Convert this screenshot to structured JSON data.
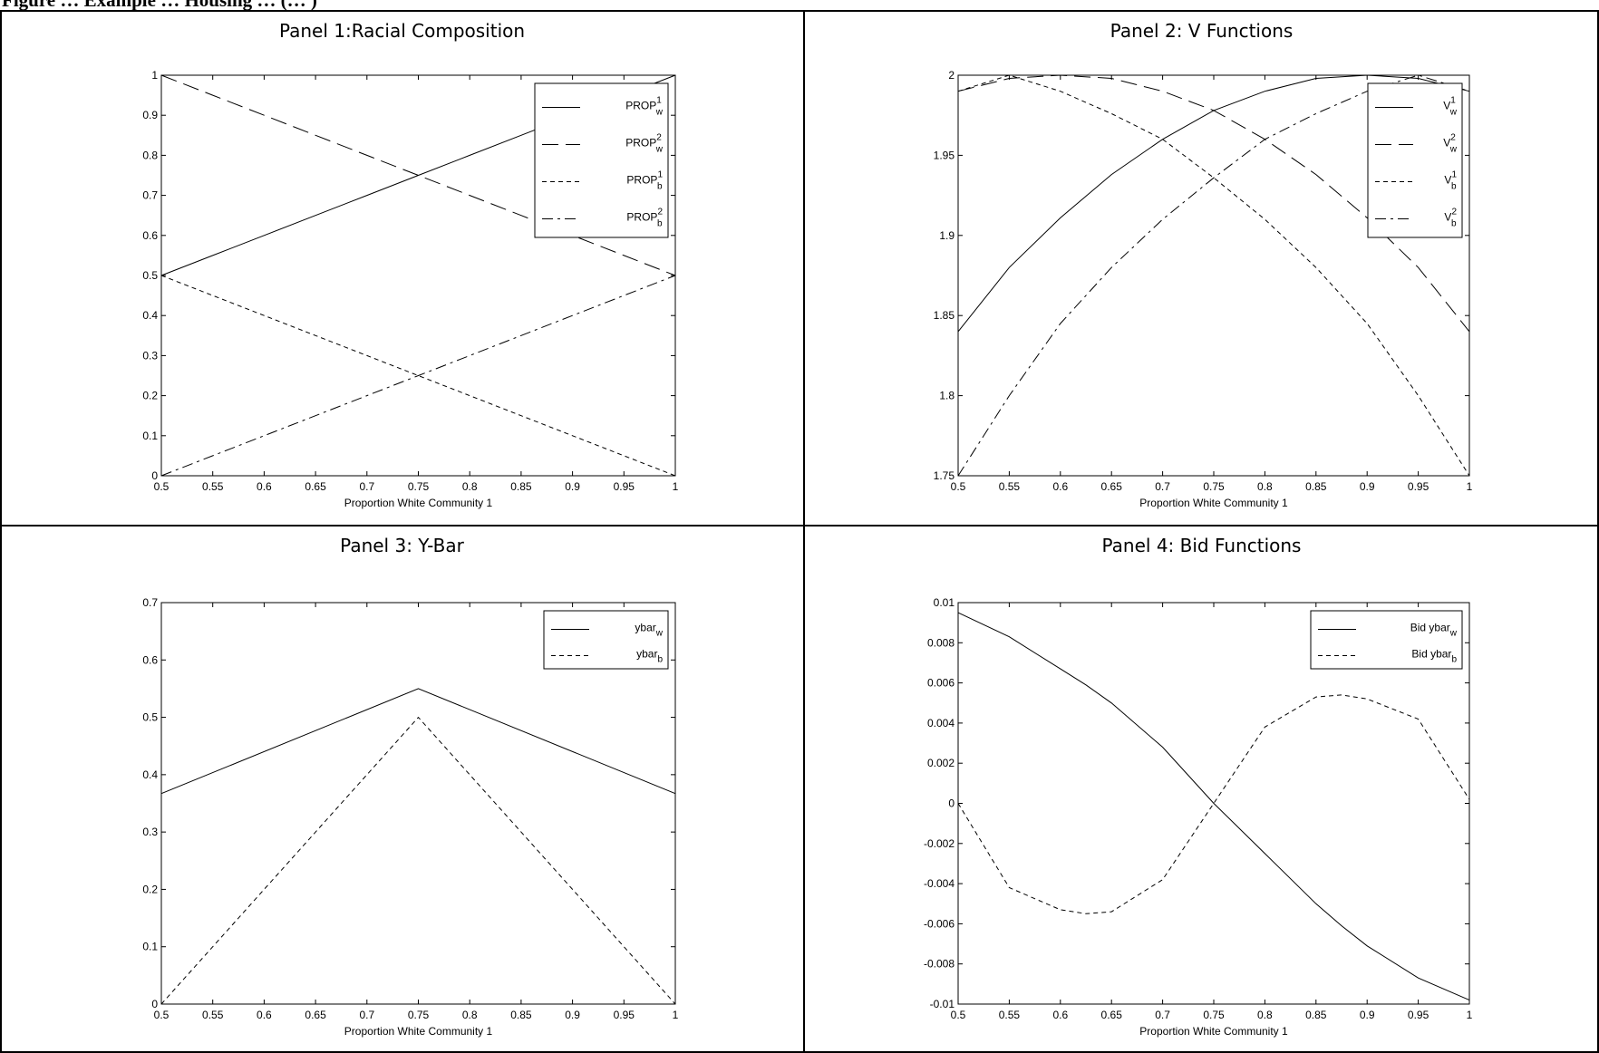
{
  "figure_caption_fragment": "Figure … Example … Housing … (… )",
  "chart_data": [
    {
      "type": "line",
      "title": "Panel 1:Racial Composition",
      "xlabel": "Proportion White Community 1",
      "ylabel": "",
      "xlim": [
        0.5,
        1
      ],
      "ylim": [
        0,
        1
      ],
      "xticks": [
        "0.5",
        "0.55",
        "0.6",
        "0.65",
        "0.7",
        "0.75",
        "0.8",
        "0.85",
        "0.9",
        "0.95",
        "1"
      ],
      "yticks": [
        "0",
        "0.1",
        "0.2",
        "0.3",
        "0.4",
        "0.5",
        "0.6",
        "0.7",
        "0.8",
        "0.9",
        "1"
      ],
      "legend_position": "top-right",
      "x": [
        0.5,
        0.55,
        0.6,
        0.65,
        0.7,
        0.75,
        0.8,
        0.85,
        0.9,
        0.95,
        1.0
      ],
      "series": [
        {
          "name": "PROP",
          "sub": "w",
          "sup": "1",
          "dash": "solid",
          "values": [
            0.5,
            0.55,
            0.6,
            0.65,
            0.7,
            0.75,
            0.8,
            0.85,
            0.9,
            0.95,
            1.0
          ]
        },
        {
          "name": "PROP",
          "sub": "w",
          "sup": "2",
          "dash": "longdash",
          "values": [
            1.0,
            0.95,
            0.9,
            0.85,
            0.8,
            0.75,
            0.7,
            0.65,
            0.6,
            0.55,
            0.5
          ]
        },
        {
          "name": "PROP",
          "sub": "b",
          "sup": "1",
          "dash": "dashed",
          "values": [
            0.5,
            0.45,
            0.4,
            0.35,
            0.3,
            0.25,
            0.2,
            0.15,
            0.1,
            0.05,
            0.0
          ]
        },
        {
          "name": "PROP",
          "sub": "b",
          "sup": "2",
          "dash": "dashdot",
          "values": [
            0.0,
            0.05,
            0.1,
            0.15,
            0.2,
            0.25,
            0.3,
            0.35,
            0.4,
            0.45,
            0.5
          ]
        }
      ]
    },
    {
      "type": "line",
      "title": "Panel 2: V Functions",
      "xlabel": "Proportion White Community 1",
      "ylabel": "",
      "xlim": [
        0.5,
        1
      ],
      "ylim": [
        1.75,
        2
      ],
      "xticks": [
        "0.5",
        "0.55",
        "0.6",
        "0.65",
        "0.7",
        "0.75",
        "0.8",
        "0.85",
        "0.9",
        "0.95",
        "1"
      ],
      "yticks": [
        "1.75",
        "1.8",
        "1.85",
        "1.9",
        "1.95",
        "2"
      ],
      "legend_position": "top-right",
      "x": [
        0.5,
        0.55,
        0.6,
        0.65,
        0.7,
        0.75,
        0.8,
        0.85,
        0.9,
        0.95,
        1.0
      ],
      "series": [
        {
          "name": "V",
          "sub": "w",
          "sup": "1",
          "dash": "solid",
          "values": [
            1.84,
            1.88,
            1.911,
            1.938,
            1.96,
            1.978,
            1.99,
            1.998,
            2.0,
            1.998,
            1.99
          ]
        },
        {
          "name": "V",
          "sub": "w",
          "sup": "2",
          "dash": "longdash",
          "values": [
            1.99,
            1.998,
            2.0,
            1.998,
            1.99,
            1.978,
            1.96,
            1.938,
            1.911,
            1.88,
            1.84
          ]
        },
        {
          "name": "V",
          "sub": "b",
          "sup": "1",
          "dash": "dashed",
          "values": [
            1.99,
            2.0,
            1.99,
            1.976,
            1.96,
            1.936,
            1.91,
            1.88,
            1.845,
            1.8,
            1.75
          ]
        },
        {
          "name": "V",
          "sub": "b",
          "sup": "2",
          "dash": "dashdot",
          "values": [
            1.75,
            1.8,
            1.845,
            1.88,
            1.91,
            1.936,
            1.96,
            1.976,
            1.99,
            2.0,
            1.99
          ]
        }
      ]
    },
    {
      "type": "line",
      "title": "Panel 3: Y-Bar",
      "xlabel": "Proportion White Community 1",
      "ylabel": "",
      "xlim": [
        0.5,
        1
      ],
      "ylim": [
        0,
        0.7
      ],
      "xticks": [
        "0.5",
        "0.55",
        "0.6",
        "0.65",
        "0.7",
        "0.75",
        "0.8",
        "0.85",
        "0.9",
        "0.95",
        "1"
      ],
      "yticks": [
        "0",
        "0.1",
        "0.2",
        "0.3",
        "0.4",
        "0.5",
        "0.6",
        "0.7"
      ],
      "legend_position": "top-right",
      "x": [
        0.5,
        0.75,
        1.0
      ],
      "series": [
        {
          "name": "ybar",
          "sub": "w",
          "sup": "",
          "dash": "solid",
          "values": [
            0.367,
            0.55,
            0.367
          ]
        },
        {
          "name": "ybar",
          "sub": "b",
          "sup": "",
          "dash": "dashed",
          "values": [
            0.0,
            0.5,
            0.0
          ]
        }
      ]
    },
    {
      "type": "line",
      "title": "Panel 4: Bid Functions",
      "xlabel": "Proportion White Community 1",
      "ylabel": "",
      "xlim": [
        0.5,
        1
      ],
      "ylim": [
        -0.01,
        0.01
      ],
      "xticks": [
        "0.5",
        "0.55",
        "0.6",
        "0.65",
        "0.7",
        "0.75",
        "0.8",
        "0.85",
        "0.9",
        "0.95",
        "1"
      ],
      "yticks": [
        "-0.01",
        "-0.008",
        "-0.006",
        "-0.004",
        "-0.002",
        "0",
        "0.002",
        "0.004",
        "0.006",
        "0.008",
        "0.01"
      ],
      "legend_position": "top-right",
      "x": [
        0.5,
        0.55,
        0.6,
        0.625,
        0.65,
        0.7,
        0.75,
        0.8,
        0.85,
        0.875,
        0.9,
        0.95,
        1.0
      ],
      "series": [
        {
          "name": "Bid ybar",
          "sub": "w",
          "sup": "",
          "dash": "solid",
          "values": [
            0.0095,
            0.0083,
            0.0067,
            0.0059,
            0.005,
            0.0028,
            0.0,
            -0.0025,
            -0.005,
            -0.0061,
            -0.0071,
            -0.0087,
            -0.0098
          ]
        },
        {
          "name": "Bid ybar",
          "sub": "b",
          "sup": "",
          "dash": "dashed",
          "values": [
            0.0,
            -0.0042,
            -0.0053,
            -0.0055,
            -0.0054,
            -0.0038,
            0.0,
            0.0038,
            0.0053,
            0.0054,
            0.0052,
            0.0042,
            0.0002
          ]
        }
      ]
    }
  ]
}
